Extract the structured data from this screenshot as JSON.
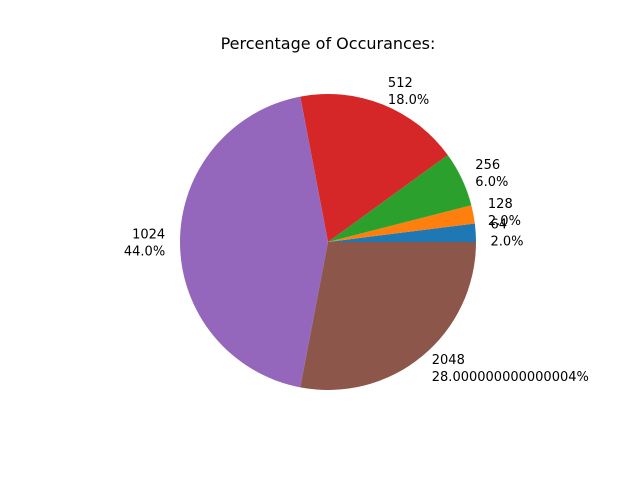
{
  "chart_data": {
    "type": "pie",
    "title": "Percentage of Occurances:",
    "start_angle_deg": 0,
    "direction": "counterclockwise",
    "slices": [
      {
        "label": "64",
        "value": 2.0,
        "pct_text": "2.0%",
        "color": "#1f77b4",
        "label_side": "left"
      },
      {
        "label": "128",
        "value": 2.0,
        "pct_text": "2.0%",
        "color": "#ff7f0e",
        "label_side": "left"
      },
      {
        "label": "256",
        "value": 6.0,
        "pct_text": "6.0%",
        "color": "#2ca02c",
        "label_side": "left"
      },
      {
        "label": "512",
        "value": 18.0,
        "pct_text": "18.0%",
        "color": "#d62728",
        "label_side": "left"
      },
      {
        "label": "1024",
        "value": 44.0,
        "pct_text": "44.0%",
        "color": "#9467bd",
        "label_side": "right"
      },
      {
        "label": "2048",
        "value": 28.0,
        "pct_text": "28.000000000000004%",
        "color": "#8c564b",
        "label_side": "left"
      }
    ]
  }
}
